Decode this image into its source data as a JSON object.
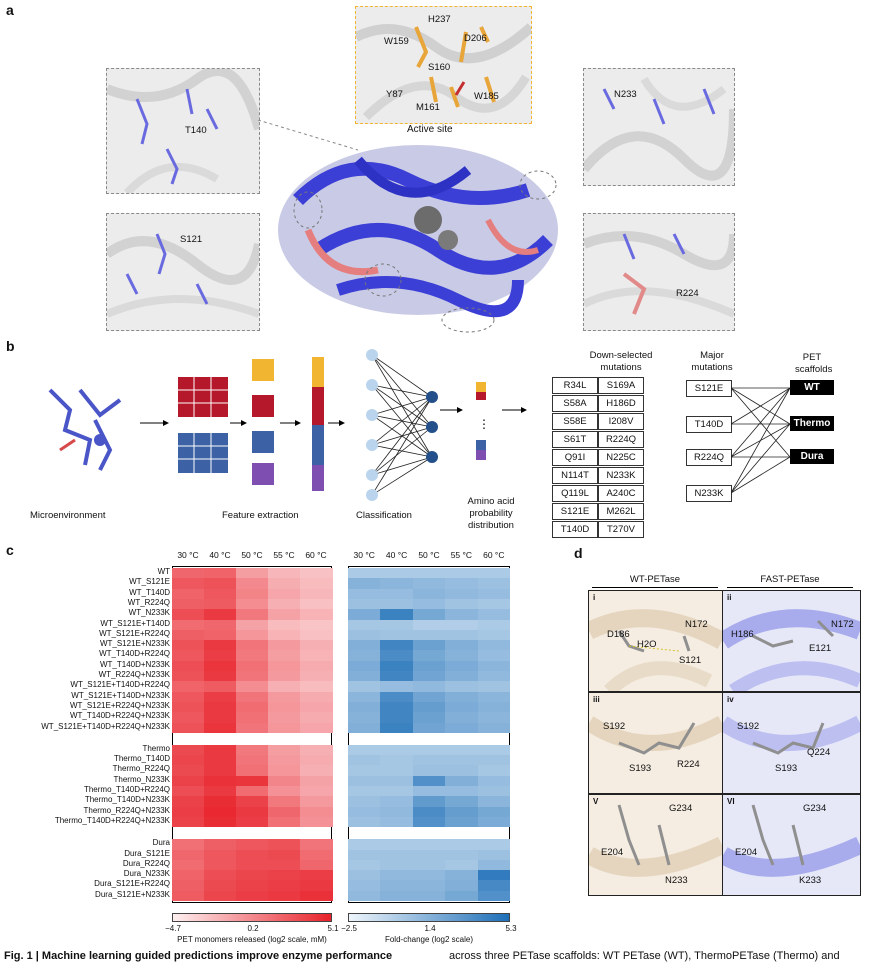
{
  "panel_a": {
    "letter": "a",
    "residues_active": [
      "H237",
      "W159",
      "D206",
      "S160",
      "Y87",
      "W185",
      "M161"
    ],
    "active_site_label": "Active site",
    "residue_T140": "T140",
    "residue_N233": "N233",
    "residue_S121": "S121",
    "residue_R224": "R224"
  },
  "panel_b": {
    "letter": "b",
    "step_microenvironment": "Microenvironment",
    "step_feature_extraction": "Feature extraction",
    "step_classification": "Classification",
    "step_probability": "Amino acid probability distribution",
    "down_selected_title": "Down-selected mutations",
    "down_selected_left": [
      "R34L",
      "S58A",
      "S58E",
      "S61T",
      "Q91I",
      "N114T",
      "Q119L",
      "S121E",
      "T140D"
    ],
    "down_selected_right": [
      "S169A",
      "H186D",
      "I208V",
      "R224Q",
      "N225C",
      "N233K",
      "A240C",
      "M262L",
      "T270V"
    ],
    "major_title": "Major mutations",
    "major_mutations": [
      "S121E",
      "T140D",
      "R224Q",
      "N233K"
    ],
    "scaffold_title": "PET scaffolds",
    "scaffolds": [
      "WT",
      "Thermo",
      "Dura"
    ]
  },
  "panel_c": {
    "letter": "c",
    "columns": [
      "30 °C",
      "40 °C",
      "50 °C",
      "55 °C",
      "60 °C"
    ],
    "groups": [
      {
        "name": "WT",
        "rows": [
          "WT",
          "WT_S121E",
          "WT_T140D",
          "WT_R224Q",
          "WT_N233K",
          "WT_S121E+T140D",
          "WT_S121E+R224Q",
          "WT_S121E+N233K",
          "WT_T140D+R224Q",
          "WT_T140D+N233K",
          "WT_R224Q+N233K",
          "WT_S121E+T140D+R224Q",
          "WT_S121E+T140D+N233K",
          "WT_S121E+R224Q+N233K",
          "WT_T140D+R224Q+N233K",
          "WT_S121E+T140D+R224Q+N233K"
        ]
      },
      {
        "name": "Thermo",
        "rows": [
          "Thermo",
          "Thermo_T140D",
          "Thermo_R224Q",
          "Thermo_N233K",
          "Thermo_T140D+R224Q",
          "Thermo_T140D+N233K",
          "Thermo_R224Q+N233K",
          "Thermo_T140D+R224Q+N233K"
        ]
      },
      {
        "name": "Dura",
        "rows": [
          "Dura",
          "Dura_S121E",
          "Dura_R224Q",
          "Dura_N233K",
          "Dura_S121E+R224Q",
          "Dura_S121E+N233K"
        ]
      }
    ],
    "colorbar_red": {
      "min": "−4.7",
      "mid": "0.2",
      "max": "5.1",
      "label": "PET monomers released (log2 scale, mM)",
      "colors": [
        "#fdf0f0",
        "#e8222b"
      ]
    },
    "colorbar_blue": {
      "min": "−2.5",
      "mid": "1.4",
      "max": "5.3",
      "label": "Fold-change (log2 scale)",
      "colors": [
        "#eef5fb",
        "#1e6fb8"
      ]
    }
  },
  "panel_d": {
    "letter": "d",
    "wt_title": "WT-PETase",
    "fast_title": "FAST-PETase",
    "sub": [
      {
        "roman": "i",
        "labels": [
          "D186",
          "N172",
          "H2O",
          "S121"
        ]
      },
      {
        "roman": "ii",
        "labels": [
          "H186",
          "N172",
          "E121"
        ]
      },
      {
        "roman": "iii",
        "labels": [
          "S192",
          "S193",
          "R224"
        ]
      },
      {
        "roman": "iv",
        "labels": [
          "S192",
          "Q224",
          "S193"
        ]
      },
      {
        "roman": "V",
        "labels": [
          "G234",
          "E204",
          "N233"
        ]
      },
      {
        "roman": "VI",
        "labels": [
          "G234",
          "E204",
          "K233"
        ]
      }
    ]
  },
  "chart_data": [
    {
      "type": "heatmap",
      "title": "",
      "xlabel": "",
      "colorbar_label": "PET monomers released (log2 scale, mM)",
      "value_range": [
        -4.7,
        5.1
      ],
      "x": [
        "30 °C",
        "40 °C",
        "50 °C",
        "55 °C",
        "60 °C"
      ],
      "y": [
        "WT",
        "WT_S121E",
        "WT_T140D",
        "WT_R224Q",
        "WT_N233K",
        "WT_S121E+T140D",
        "WT_S121E+R224Q",
        "WT_S121E+N233K",
        "WT_T140D+R224Q",
        "WT_T140D+N233K",
        "WT_R224Q+N233K",
        "WT_S121E+T140D+R224Q",
        "WT_S121E+T140D+N233K",
        "WT_S121E+R224Q+N233K",
        "WT_T140D+R224Q+N233K",
        "WT_S121E+T140D+R224Q+N233K",
        "Thermo",
        "Thermo_T140D",
        "Thermo_R224Q",
        "Thermo_N233K",
        "Thermo_T140D+R224Q",
        "Thermo_T140D+N233K",
        "Thermo_R224Q+N233K",
        "Thermo_T140D+R224Q+N233K",
        "Dura",
        "Dura_S121E",
        "Dura_R224Q",
        "Dura_N233K",
        "Dura_S121E+R224Q",
        "Dura_S121E+N233K"
      ],
      "values": [
        [
          1.8,
          2.0,
          -0.8,
          -2.0,
          -2.5
        ],
        [
          2.6,
          2.8,
          0.2,
          -1.5,
          -2.2
        ],
        [
          2.0,
          2.6,
          0.5,
          -1.2,
          -2.0
        ],
        [
          2.2,
          2.4,
          0.0,
          -1.6,
          -2.4
        ],
        [
          3.0,
          4.0,
          1.0,
          -1.0,
          -1.8
        ],
        [
          1.6,
          1.8,
          -1.0,
          -2.2,
          -2.6
        ],
        [
          2.2,
          2.0,
          -0.4,
          -1.8,
          -2.4
        ],
        [
          2.8,
          4.0,
          1.2,
          -0.6,
          -1.6
        ],
        [
          2.6,
          3.8,
          1.0,
          -0.8,
          -1.8
        ],
        [
          3.0,
          4.2,
          1.4,
          -0.4,
          -1.4
        ],
        [
          2.8,
          4.0,
          1.2,
          -0.6,
          -1.6
        ],
        [
          2.0,
          2.4,
          0.0,
          -1.6,
          -2.2
        ],
        [
          2.6,
          3.8,
          1.2,
          -0.6,
          -1.4
        ],
        [
          2.8,
          4.0,
          1.6,
          -0.4,
          -1.2
        ],
        [
          2.6,
          4.0,
          1.4,
          -0.6,
          -1.4
        ],
        [
          2.8,
          4.2,
          1.2,
          -0.4,
          -1.2
        ],
        [
          3.2,
          4.0,
          1.0,
          -0.8,
          -1.6
        ],
        [
          3.4,
          4.0,
          1.2,
          -0.6,
          -1.4
        ],
        [
          3.2,
          4.0,
          1.4,
          -0.4,
          -1.6
        ],
        [
          3.6,
          4.4,
          4.2,
          0.4,
          -1.0
        ],
        [
          3.0,
          4.0,
          1.6,
          -0.2,
          -1.2
        ],
        [
          3.6,
          4.6,
          3.6,
          1.0,
          -0.6
        ],
        [
          3.8,
          4.8,
          4.0,
          1.8,
          0.0
        ],
        [
          3.6,
          4.6,
          3.8,
          1.4,
          -0.2
        ],
        [
          1.4,
          2.2,
          2.6,
          2.8,
          1.2
        ],
        [
          1.8,
          2.6,
          3.0,
          3.2,
          1.6
        ],
        [
          1.6,
          2.6,
          3.0,
          3.0,
          1.8
        ],
        [
          2.0,
          3.0,
          3.4,
          3.6,
          3.8
        ],
        [
          2.2,
          3.2,
          3.6,
          3.8,
          4.0
        ],
        [
          2.4,
          3.4,
          3.8,
          4.0,
          4.4
        ]
      ]
    },
    {
      "type": "heatmap",
      "title": "",
      "xlabel": "",
      "colorbar_label": "Fold-change (log2 scale)",
      "value_range": [
        -2.5,
        5.3
      ],
      "x": [
        "30 °C",
        "40 °C",
        "50 °C",
        "55 °C",
        "60 °C"
      ],
      "y": [
        "WT",
        "WT_S121E",
        "WT_T140D",
        "WT_R224Q",
        "WT_N233K",
        "WT_S121E+T140D",
        "WT_S121E+R224Q",
        "WT_S121E+N233K",
        "WT_T140D+R224Q",
        "WT_T140D+N233K",
        "WT_R224Q+N233K",
        "WT_S121E+T140D+R224Q",
        "WT_S121E+T140D+N233K",
        "WT_S121E+R224Q+N233K",
        "WT_T140D+R224Q+N233K",
        "WT_S121E+T140D+R224Q+N233K",
        "Thermo",
        "Thermo_T140D",
        "Thermo_R224Q",
        "Thermo_N233K",
        "Thermo_T140D+R224Q",
        "Thermo_T140D+N233K",
        "Thermo_R224Q+N233K",
        "Thermo_T140D+R224Q+N233K",
        "Dura",
        "Dura_S121E",
        "Dura_R224Q",
        "Dura_N233K",
        "Dura_S121E+R224Q",
        "Dura_S121E+N233K"
      ],
      "values": [
        [
          0.0,
          0.0,
          0.0,
          0.0,
          0.0
        ],
        [
          1.4,
          1.2,
          1.0,
          0.8,
          0.6
        ],
        [
          0.8,
          0.8,
          1.2,
          1.0,
          0.8
        ],
        [
          0.6,
          0.6,
          0.8,
          0.4,
          0.2
        ],
        [
          1.8,
          4.2,
          2.0,
          1.2,
          0.8
        ],
        [
          0.2,
          0.2,
          -0.2,
          -0.2,
          0.0
        ],
        [
          0.6,
          0.4,
          0.4,
          0.4,
          0.2
        ],
        [
          1.6,
          4.0,
          2.4,
          1.6,
          1.0
        ],
        [
          1.4,
          3.6,
          2.0,
          1.4,
          0.8
        ],
        [
          1.8,
          4.2,
          2.4,
          1.8,
          1.2
        ],
        [
          1.6,
          4.0,
          2.2,
          1.6,
          1.0
        ],
        [
          0.4,
          0.8,
          1.0,
          0.6,
          0.4
        ],
        [
          1.2,
          3.6,
          2.2,
          1.6,
          1.2
        ],
        [
          1.6,
          4.0,
          2.6,
          1.8,
          1.4
        ],
        [
          1.4,
          4.0,
          2.4,
          1.6,
          1.2
        ],
        [
          1.6,
          4.2,
          2.2,
          1.8,
          1.4
        ],
        [
          0.0,
          0.0,
          0.0,
          0.0,
          0.0
        ],
        [
          0.4,
          0.2,
          0.4,
          0.4,
          0.4
        ],
        [
          0.2,
          0.2,
          0.6,
          0.6,
          0.2
        ],
        [
          0.6,
          0.6,
          3.4,
          1.6,
          0.8
        ],
        [
          0.2,
          0.2,
          0.8,
          0.8,
          0.6
        ],
        [
          0.6,
          0.8,
          2.8,
          2.0,
          1.2
        ],
        [
          0.8,
          1.0,
          3.6,
          2.6,
          2.0
        ],
        [
          0.6,
          0.8,
          3.4,
          2.4,
          1.8
        ],
        [
          0.0,
          0.0,
          0.0,
          0.0,
          0.0
        ],
        [
          0.4,
          0.4,
          0.4,
          0.4,
          0.6
        ],
        [
          0.2,
          0.4,
          0.4,
          0.2,
          1.0
        ],
        [
          0.6,
          1.0,
          1.0,
          1.4,
          4.6
        ],
        [
          0.8,
          1.2,
          1.2,
          1.6,
          3.8
        ],
        [
          1.0,
          1.4,
          1.4,
          2.0,
          3.4
        ]
      ]
    }
  ],
  "caption": {
    "bold": "Fig. 1 | Machine learning guided predictions improve enzyme performance",
    "right": "across three PETase scaffolds: WT PETase (WT), ThermoPETase (Thermo) and"
  }
}
